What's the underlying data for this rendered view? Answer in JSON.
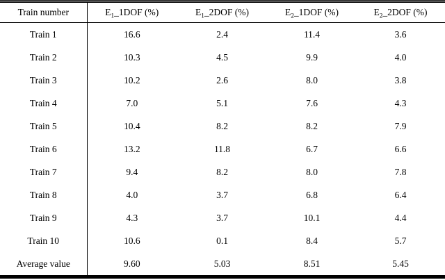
{
  "table": {
    "columns": [
      {
        "label": "Train number"
      },
      {
        "prefix": "E",
        "sub": "1",
        "suffix": "_1DOF (%)"
      },
      {
        "prefix": "E",
        "sub": "1",
        "suffix": "_2DOF (%)"
      },
      {
        "prefix": "E",
        "sub": "2",
        "suffix": "_1DOF (%)"
      },
      {
        "prefix": "E",
        "sub": "2",
        "suffix": "_2DOF (%)"
      }
    ],
    "rows": [
      {
        "label": "Train 1",
        "values": [
          "16.6",
          "2.4",
          "11.4",
          "3.6"
        ]
      },
      {
        "label": "Train 2",
        "values": [
          "10.3",
          "4.5",
          "9.9",
          "4.0"
        ]
      },
      {
        "label": "Train 3",
        "values": [
          "10.2",
          "2.6",
          "8.0",
          "3.8"
        ]
      },
      {
        "label": "Train 4",
        "values": [
          "7.0",
          "5.1",
          "7.6",
          "4.3"
        ]
      },
      {
        "label": "Train 5",
        "values": [
          "10.4",
          "8.2",
          "8.2",
          "7.9"
        ]
      },
      {
        "label": "Train 6",
        "values": [
          "13.2",
          "11.8",
          "6.7",
          "6.6"
        ]
      },
      {
        "label": "Train 7",
        "values": [
          "9.4",
          "8.2",
          "8.0",
          "7.8"
        ]
      },
      {
        "label": "Train 8",
        "values": [
          "4.0",
          "3.7",
          "6.8",
          "6.4"
        ]
      },
      {
        "label": "Train 9",
        "values": [
          "4.3",
          "3.7",
          "10.1",
          "4.4"
        ]
      },
      {
        "label": "Train 10",
        "values": [
          "10.6",
          "0.1",
          "8.4",
          "5.7"
        ]
      },
      {
        "label": "Average value",
        "values": [
          "9.60",
          "5.03",
          "8.51",
          "5.45"
        ]
      }
    ],
    "colors": {
      "rule": "#000000",
      "text": "#000000",
      "background": "#ffffff"
    }
  }
}
